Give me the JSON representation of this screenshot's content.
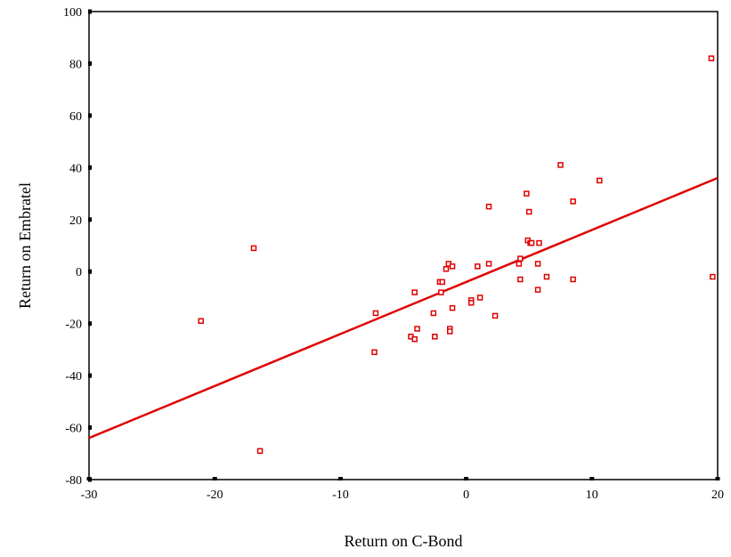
{
  "chart_data": {
    "type": "scatter",
    "title": "",
    "xlabel": "Return on C-Bond",
    "ylabel": "Return on Embratel",
    "xlim": [
      -30,
      20
    ],
    "ylim": [
      -80,
      100
    ],
    "xticks": [
      -30,
      -20,
      -10,
      0,
      10,
      20
    ],
    "yticks": [
      -80,
      -60,
      -40,
      -20,
      0,
      20,
      40,
      60,
      80,
      100
    ],
    "grid": false,
    "legend": "none",
    "colors": {
      "points": "#e00000",
      "fit_line": "#e00000",
      "axes": "#000000"
    },
    "series": [
      {
        "type": "scatter",
        "points": [
          [
            -21.1,
            -19
          ],
          [
            -16.9,
            9
          ],
          [
            -16.4,
            -69
          ],
          [
            -7.2,
            -16
          ],
          [
            -7.3,
            -31
          ],
          [
            -4.1,
            -8
          ],
          [
            -3.9,
            -22
          ],
          [
            -4.4,
            -25
          ],
          [
            -4.1,
            -26
          ],
          [
            -2.6,
            -16
          ],
          [
            -2.5,
            -25
          ],
          [
            -2.1,
            -4
          ],
          [
            -1.9,
            -4
          ],
          [
            -2.0,
            -8
          ],
          [
            -1.6,
            1
          ],
          [
            -1.4,
            3
          ],
          [
            -1.1,
            2
          ],
          [
            -1.1,
            -14
          ],
          [
            -1.3,
            -22
          ],
          [
            -1.3,
            -23
          ],
          [
            0.4,
            -11
          ],
          [
            0.4,
            -12
          ],
          [
            0.9,
            2
          ],
          [
            1.1,
            -10
          ],
          [
            1.8,
            25
          ],
          [
            1.8,
            3
          ],
          [
            2.3,
            -17
          ],
          [
            4.2,
            3
          ],
          [
            4.3,
            5
          ],
          [
            4.3,
            -3
          ],
          [
            4.8,
            30
          ],
          [
            5.0,
            23
          ],
          [
            4.9,
            12
          ],
          [
            5.1,
            11
          ],
          [
            5.2,
            11
          ],
          [
            5.7,
            3
          ],
          [
            5.8,
            11
          ],
          [
            5.7,
            -7
          ],
          [
            6.4,
            -2
          ],
          [
            7.5,
            41
          ],
          [
            8.5,
            27
          ],
          [
            8.5,
            -3
          ],
          [
            10.6,
            35
          ],
          [
            19.5,
            82
          ],
          [
            19.6,
            -2
          ]
        ]
      },
      {
        "type": "line",
        "points": [
          [
            -30,
            -64
          ],
          [
            20,
            36
          ]
        ]
      }
    ]
  }
}
